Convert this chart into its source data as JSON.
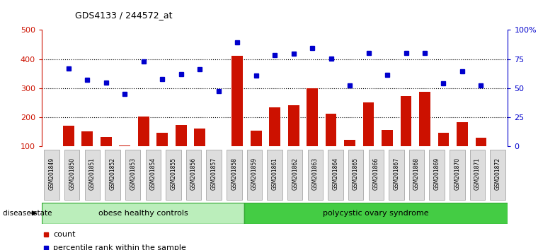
{
  "title": "GDS4133 / 244572_at",
  "samples": [
    "GSM201849",
    "GSM201850",
    "GSM201851",
    "GSM201852",
    "GSM201853",
    "GSM201854",
    "GSM201855",
    "GSM201856",
    "GSM201857",
    "GSM201858",
    "GSM201859",
    "GSM201861",
    "GSM201862",
    "GSM201863",
    "GSM201864",
    "GSM201865",
    "GSM201866",
    "GSM201867",
    "GSM201868",
    "GSM201869",
    "GSM201870",
    "GSM201871",
    "GSM201872"
  ],
  "counts": [
    170,
    152,
    132,
    103,
    203,
    147,
    172,
    160,
    101,
    412,
    153,
    235,
    240,
    300,
    213,
    122,
    252,
    155,
    272,
    288,
    147,
    182,
    130
  ],
  "percentiles": [
    368,
    328,
    318,
    280,
    392,
    330,
    348,
    365,
    290,
    458,
    343,
    413,
    418,
    438,
    402,
    308,
    420,
    346,
    420,
    420,
    316,
    358,
    310
  ],
  "group1_label": "obese healthy controls",
  "group1_count": 10,
  "group2_label": "polycystic ovary syndrome",
  "group2_count": 13,
  "ylim_left": [
    100,
    500
  ],
  "ylim_right": [
    0,
    100
  ],
  "yticks_left": [
    100,
    200,
    300,
    400,
    500
  ],
  "yticks_right": [
    0,
    25,
    50,
    75,
    100
  ],
  "bar_color": "#cc1100",
  "dot_color": "#0000cc",
  "group1_color": "#bbeebb",
  "group2_color": "#44cc44",
  "disease_state_label": "disease state",
  "legend_count": "count",
  "legend_percentile": "percentile rank within the sample",
  "dotted_lines": [
    200,
    300,
    400
  ]
}
